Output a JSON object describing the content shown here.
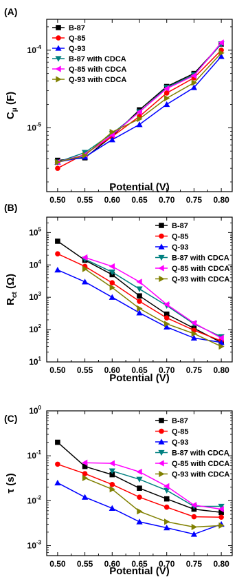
{
  "chart_data": [
    {
      "type": "line",
      "panel_label": "(A)",
      "ylabel_main": "C",
      "ylabel_sub": "μ",
      "ylabel_unit": " (F)",
      "xlabel": "Potential (V)",
      "x": [
        0.5,
        0.55,
        0.6,
        0.65,
        0.7,
        0.75,
        0.8
      ],
      "x_tick_labels": [
        "0.50",
        "0.55",
        "0.60",
        "0.65",
        "0.70",
        "0.75",
        "0.80"
      ],
      "xlim": [
        0.48,
        0.82
      ],
      "yscale": "log",
      "ylim": [
        1.5e-06,
        0.00025
      ],
      "y_ticks": [
        {
          "value": 1e-05,
          "base": "10",
          "exp": "-5"
        },
        {
          "value": 0.0001,
          "base": "10",
          "exp": "-4"
        }
      ],
      "legend_position": "top-left",
      "series": [
        {
          "name": "B-87",
          "color": "#000000",
          "marker": "square",
          "values": [
            3.8e-06,
            4.1e-06,
            7.8e-06,
            1.7e-05,
            3.4e-05,
            5e-05,
            0.00012
          ]
        },
        {
          "name": "Q-85",
          "color": "#ff0000",
          "marker": "circle",
          "values": [
            3e-06,
            4.6e-06,
            7.7e-06,
            1.4e-05,
            2.8e-05,
            4.4e-05,
            0.0001
          ]
        },
        {
          "name": "Q-93",
          "color": "#0000ff",
          "marker": "triangle-up",
          "values": [
            3.6e-06,
            4.2e-06,
            7e-06,
            1.1e-05,
            2e-05,
            3.3e-05,
            8.3e-05
          ]
        },
        {
          "name": "B-87 with CDCA",
          "color": "#008080",
          "marker": "triangle-down",
          "values": [
            3.6e-06,
            4.8e-06,
            8.4e-06,
            1.6e-05,
            3.3e-05,
            4.8e-05,
            0.00012
          ]
        },
        {
          "name": "Q-85 with CDCA",
          "color": "#ff00ff",
          "marker": "triangle-left",
          "values": [
            3.6e-06,
            4.5e-06,
            8.1e-06,
            1.6e-05,
            3.2e-05,
            4.7e-05,
            0.000125
          ]
        },
        {
          "name": "Q-93 with CDCA",
          "color": "#808000",
          "marker": "triangle-right",
          "values": [
            3.6e-06,
            4.4e-06,
            8.8e-06,
            1.3e-05,
            2.4e-05,
            3.8e-05,
            9.2e-05
          ]
        }
      ]
    },
    {
      "type": "line",
      "panel_label": "(B)",
      "ylabel_main": "R",
      "ylabel_sub": "ct",
      "ylabel_unit": " (Ω)",
      "xlabel": "Potential (V)",
      "x": [
        0.5,
        0.55,
        0.6,
        0.65,
        0.7,
        0.75,
        0.8
      ],
      "x_tick_labels": [
        "0.50",
        "0.55",
        "0.60",
        "0.65",
        "0.70",
        "0.75",
        "0.80"
      ],
      "xlim": [
        0.48,
        0.82
      ],
      "yscale": "log",
      "ylim": [
        10,
        300000
      ],
      "y_ticks": [
        {
          "value": 10,
          "base": "10",
          "exp": "1"
        },
        {
          "value": 100,
          "base": "10",
          "exp": "2"
        },
        {
          "value": 1000,
          "base": "10",
          "exp": "3"
        },
        {
          "value": 10000,
          "base": "10",
          "exp": "4"
        },
        {
          "value": 100000,
          "base": "10",
          "exp": "5"
        }
      ],
      "legend_position": "top-right",
      "series": [
        {
          "name": "B-87",
          "color": "#000000",
          "marker": "square",
          "values": [
            54000,
            14000,
            5000,
            1100,
            300,
            110,
            40
          ]
        },
        {
          "name": "Q-85",
          "color": "#ff0000",
          "marker": "circle",
          "values": [
            22000,
            9000,
            2800,
            750,
            230,
            95,
            45
          ]
        },
        {
          "name": "Q-93",
          "color": "#0000ff",
          "marker": "triangle-up",
          "values": [
            7000,
            3000,
            1000,
            330,
            120,
            55,
            40
          ]
        },
        {
          "name": "B-87 with CDCA",
          "color": "#008080",
          "marker": "triangle-down",
          "values": [
            null,
            15000,
            6000,
            1800,
            550,
            150,
            60
          ]
        },
        {
          "name": "Q-85 with CDCA",
          "color": "#ff00ff",
          "marker": "triangle-left",
          "values": [
            null,
            17000,
            9000,
            3000,
            600,
            160,
            55
          ]
        },
        {
          "name": "Q-93 with CDCA",
          "color": "#808000",
          "marker": "triangle-right",
          "values": [
            null,
            7500,
            2000,
            450,
            150,
            75,
            30
          ]
        }
      ]
    },
    {
      "type": "line",
      "panel_label": "(C)",
      "ylabel_main": "τ",
      "ylabel_sub": "",
      "ylabel_unit": " (s)",
      "xlabel": "Potential (V)",
      "x": [
        0.5,
        0.55,
        0.6,
        0.65,
        0.7,
        0.75,
        0.8
      ],
      "x_tick_labels": [
        "0.50",
        "0.55",
        "0.60",
        "0.65",
        "0.70",
        "0.75",
        "0.80"
      ],
      "xlim": [
        0.48,
        0.82
      ],
      "yscale": "log",
      "ylim": [
        0.0006,
        1
      ],
      "y_ticks": [
        {
          "value": 0.001,
          "base": "10",
          "exp": "-3"
        },
        {
          "value": 0.01,
          "base": "10",
          "exp": "-2"
        },
        {
          "value": 0.1,
          "base": "10",
          "exp": "-1"
        },
        {
          "value": 1,
          "base": "10",
          "exp": "0"
        }
      ],
      "legend_position": "top-right",
      "series": [
        {
          "name": "B-87",
          "color": "#000000",
          "marker": "square",
          "values": [
            0.2,
            0.058,
            0.038,
            0.019,
            0.011,
            0.0065,
            0.0055
          ]
        },
        {
          "name": "Q-85",
          "color": "#ff0000",
          "marker": "circle",
          "values": [
            0.065,
            0.04,
            0.023,
            0.012,
            0.0072,
            0.0044,
            0.0043
          ]
        },
        {
          "name": "Q-93",
          "color": "#0000ff",
          "marker": "triangle-up",
          "values": [
            0.025,
            0.012,
            0.0068,
            0.0034,
            0.0025,
            0.0018,
            0.003
          ]
        },
        {
          "name": "B-87 with CDCA",
          "color": "#008080",
          "marker": "triangle-down",
          "values": [
            null,
            null,
            0.046,
            0.03,
            0.017,
            0.0075,
            0.0075
          ]
        },
        {
          "name": "Q-85 with CDCA",
          "color": "#ff00ff",
          "marker": "triangle-left",
          "values": [
            null,
            0.07,
            0.068,
            0.044,
            0.021,
            0.008,
            0.0065
          ]
        },
        {
          "name": "Q-93 with CDCA",
          "color": "#808000",
          "marker": "triangle-right",
          "values": [
            null,
            0.032,
            0.018,
            0.0058,
            0.0034,
            0.0026,
            0.0028
          ]
        }
      ]
    }
  ]
}
